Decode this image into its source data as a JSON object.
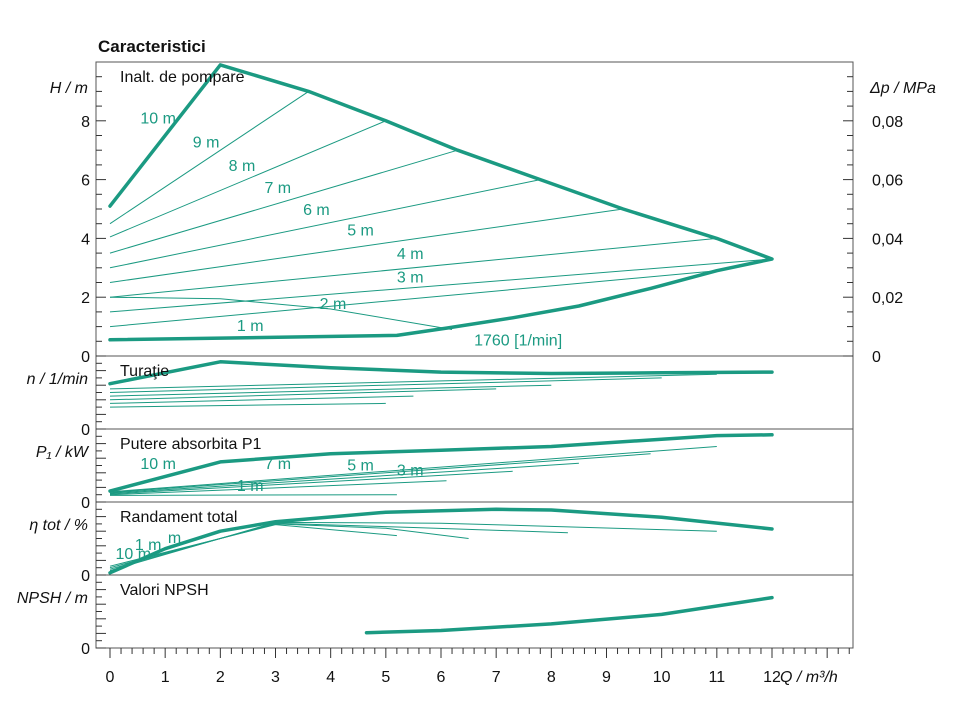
{
  "title": "Caracteristici",
  "colors": {
    "curve": "#1b9a82",
    "axis": "#333333",
    "frame": "#555555"
  },
  "chart_data": {
    "type": "line",
    "x_axis": {
      "label": "Q / m³/h",
      "range": [
        0,
        12
      ],
      "ticks": [
        "0",
        "1",
        "2",
        "3",
        "4",
        "5",
        "6",
        "7",
        "8",
        "9",
        "10",
        "11",
        "12"
      ]
    },
    "panels": [
      {
        "key": "head",
        "title": "Inalt. de pompare",
        "ylabel": "H / m",
        "ylim": [
          0,
          10
        ],
        "yticks": [
          {
            "v": 0,
            "t": "0"
          },
          {
            "v": 2,
            "t": "2"
          },
          {
            "v": 4,
            "t": "4"
          },
          {
            "v": 6,
            "t": "6"
          },
          {
            "v": 8,
            "t": "8"
          }
        ],
        "right_axis": {
          "label": "Δp / MPa",
          "ticks": [
            {
              "v": 0,
              "t": "0"
            },
            {
              "v": 2,
              "t": "0,02"
            },
            {
              "v": 4,
              "t": "0,04"
            },
            {
              "v": 6,
              "t": "0,06"
            },
            {
              "v": 8,
              "t": "0,08"
            }
          ]
        },
        "envelope": [
          [
            0,
            5.1
          ],
          [
            2,
            9.9
          ],
          [
            3.6,
            9
          ],
          [
            5,
            8
          ],
          [
            6.3,
            7
          ],
          [
            7.8,
            6
          ],
          [
            9.3,
            5
          ],
          [
            11,
            4
          ],
          [
            12,
            3.3
          ],
          [
            11,
            2.9
          ],
          [
            9.8,
            2.3
          ],
          [
            8.5,
            1.7
          ],
          [
            7.3,
            1.3
          ],
          [
            6.1,
            0.95
          ],
          [
            5.2,
            0.7
          ],
          [
            0,
            0.55
          ]
        ],
        "lines": [
          {
            "name": "9 m",
            "points": [
              [
                0,
                4.5
              ],
              [
                3.6,
                9
              ]
            ]
          },
          {
            "name": "8 m",
            "points": [
              [
                0,
                4.05
              ],
              [
                5,
                8
              ]
            ]
          },
          {
            "name": "7 m",
            "points": [
              [
                0,
                3.5
              ],
              [
                6.3,
                7
              ]
            ]
          },
          {
            "name": "6 m",
            "points": [
              [
                0,
                3.0
              ],
              [
                7.8,
                6
              ]
            ]
          },
          {
            "name": "5 m",
            "points": [
              [
                0,
                2.5
              ],
              [
                9.3,
                5
              ]
            ]
          },
          {
            "name": "4 m",
            "points": [
              [
                0,
                2.0
              ],
              [
                11,
                4
              ]
            ]
          },
          {
            "name": "3 m",
            "points": [
              [
                0,
                1.5
              ],
              [
                12,
                3.3
              ]
            ]
          },
          {
            "name": "2 m",
            "points": [
              [
                0,
                1.0
              ],
              [
                11,
                2.9
              ]
            ]
          },
          {
            "name": "1760 [1/min]",
            "points": [
              [
                0,
                2.0
              ],
              [
                2,
                1.95
              ],
              [
                4,
                1.6
              ],
              [
                6.2,
                0.9
              ]
            ]
          }
        ],
        "labels": [
          {
            "text": "10 m",
            "x": 0.55,
            "y": 7.9
          },
          {
            "text": "9 m",
            "x": 1.5,
            "y": 7.1
          },
          {
            "text": "8 m",
            "x": 2.15,
            "y": 6.3
          },
          {
            "text": "7 m",
            "x": 2.8,
            "y": 5.55
          },
          {
            "text": "6 m",
            "x": 3.5,
            "y": 4.8
          },
          {
            "text": "5 m",
            "x": 4.3,
            "y": 4.1
          },
          {
            "text": "4 m",
            "x": 5.2,
            "y": 3.3
          },
          {
            "text": "3 m",
            "x": 5.2,
            "y": 2.5
          },
          {
            "text": "2 m",
            "x": 3.8,
            "y": 1.6
          },
          {
            "text": "1 m",
            "x": 2.3,
            "y": 0.85
          },
          {
            "text": "1760 [1/min]",
            "x": 6.6,
            "y": 0.35
          }
        ]
      },
      {
        "key": "speed",
        "title": "Turaţie",
        "ylabel": "n / 1/min",
        "ylim": [
          0,
          10
        ],
        "yticks": [
          {
            "v": 0,
            "t": "0"
          }
        ],
        "envelope": [
          [
            0,
            6.2
          ],
          [
            2,
            9.2
          ],
          [
            4,
            8.4
          ],
          [
            6,
            7.8
          ],
          [
            8,
            7.6
          ],
          [
            10,
            7.7
          ],
          [
            12,
            7.8
          ]
        ],
        "lines": [
          {
            "name": "",
            "points": [
              [
                0,
                5.5
              ],
              [
                11,
                7.5
              ]
            ]
          },
          {
            "name": "",
            "points": [
              [
                0,
                5
              ],
              [
                10,
                7
              ]
            ]
          },
          {
            "name": "",
            "points": [
              [
                0,
                4.5
              ],
              [
                8,
                6
              ]
            ]
          },
          {
            "name": "",
            "points": [
              [
                0,
                4
              ],
              [
                7,
                5.5
              ]
            ]
          },
          {
            "name": "",
            "points": [
              [
                0,
                3.5
              ],
              [
                5.5,
                4.5
              ]
            ]
          },
          {
            "name": "",
            "points": [
              [
                0,
                3
              ],
              [
                5,
                3.5
              ]
            ]
          }
        ],
        "labels": []
      },
      {
        "key": "power",
        "title": "Putere absorbita P1",
        "ylabel": "P₁ / kW",
        "ylim": [
          0,
          10
        ],
        "yticks": [
          {
            "v": 0,
            "t": "0"
          }
        ],
        "envelope": [
          [
            0,
            1.5
          ],
          [
            2,
            5.5
          ],
          [
            4,
            6.6
          ],
          [
            6,
            7.1
          ],
          [
            8,
            7.6
          ],
          [
            10,
            8.6
          ],
          [
            11,
            9.1
          ],
          [
            12,
            9.2
          ]
        ],
        "lines": [
          {
            "name": "",
            "points": [
              [
                0,
                1.4
              ],
              [
                11,
                7.6
              ]
            ]
          },
          {
            "name": "",
            "points": [
              [
                0,
                1.3
              ],
              [
                9.8,
                6.6
              ]
            ]
          },
          {
            "name": "",
            "points": [
              [
                0,
                1.2
              ],
              [
                8.5,
                5.3
              ]
            ]
          },
          {
            "name": "",
            "points": [
              [
                0,
                1.1
              ],
              [
                7.3,
                4.2
              ]
            ]
          },
          {
            "name": "",
            "points": [
              [
                0,
                1.0
              ],
              [
                6.1,
                2.9
              ]
            ]
          },
          {
            "name": "",
            "points": [
              [
                0,
                0.9
              ],
              [
                5.2,
                1.0
              ]
            ]
          }
        ],
        "labels": [
          {
            "text": "10 m",
            "x": 0.55,
            "y": 4.5
          },
          {
            "text": "7 m",
            "x": 2.8,
            "y": 4.5
          },
          {
            "text": "5 m",
            "x": 4.3,
            "y": 4.3
          },
          {
            "text": "3 m",
            "x": 5.2,
            "y": 3.6
          },
          {
            "text": "1 m",
            "x": 2.3,
            "y": 1.5
          }
        ]
      },
      {
        "key": "eff",
        "title": "Randament total",
        "ylabel": "η tot / %",
        "ylim": [
          0,
          10
        ],
        "yticks": [
          {
            "v": 0,
            "t": "0"
          }
        ],
        "envelope": [
          [
            0,
            0.3
          ],
          [
            1,
            3.6
          ],
          [
            2,
            6
          ],
          [
            3,
            7.3
          ],
          [
            5,
            8.6
          ],
          [
            7,
            9
          ],
          [
            8,
            8.9
          ],
          [
            10,
            7.9
          ],
          [
            12,
            6.3
          ]
        ],
        "lines": [
          {
            "name": "",
            "points": [
              [
                0,
                0.6
              ],
              [
                3,
                7.2
              ],
              [
                6,
                7.1
              ],
              [
                11,
                6.0
              ]
            ]
          },
          {
            "name": "",
            "points": [
              [
                0,
                0.8
              ],
              [
                3,
                7.1
              ],
              [
                5.5,
                6.5
              ],
              [
                8.3,
                5.8
              ]
            ]
          },
          {
            "name": "",
            "points": [
              [
                0,
                1.0
              ],
              [
                3,
                7.0
              ],
              [
                5,
                6.4
              ],
              [
                6.5,
                5.0
              ]
            ]
          },
          {
            "name": "",
            "points": [
              [
                0,
                1.2
              ],
              [
                3,
                6.9
              ],
              [
                5.2,
                5.4
              ]
            ]
          }
        ],
        "labels": [
          {
            "text": "10 m",
            "x": 0.1,
            "y": 2.2
          },
          {
            "text": "1 m",
            "x": 0.45,
            "y": 3.4
          },
          {
            "text": "m",
            "x": 1.05,
            "y": 4.4
          }
        ]
      },
      {
        "key": "npsh",
        "title": "Valori NPSH",
        "ylabel": "NPSH / m",
        "ylim": [
          0,
          10
        ],
        "yticks": [
          {
            "v": 0,
            "t": "0"
          }
        ],
        "envelope": [
          [
            4.65,
            2.1
          ],
          [
            6,
            2.4
          ],
          [
            8,
            3.3
          ],
          [
            10,
            4.6
          ],
          [
            12,
            6.9
          ]
        ],
        "lines": [],
        "labels": []
      }
    ]
  }
}
